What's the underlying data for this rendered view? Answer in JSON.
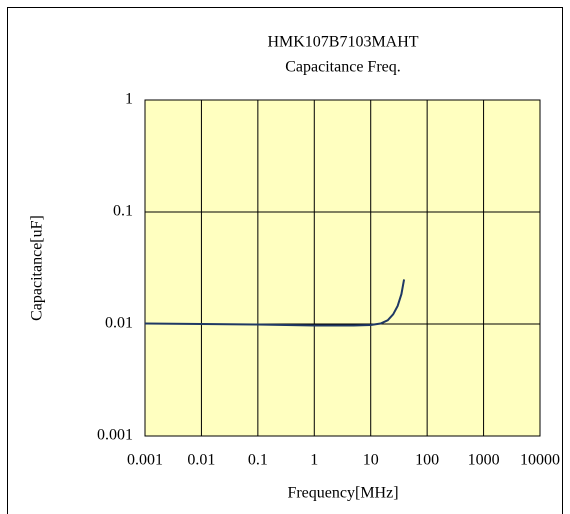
{
  "chart_data": {
    "type": "line",
    "title": "HMK107B7103MAHT",
    "subtitle": "Capacitance Freq.",
    "x_label": "Frequency[MHz]",
    "y_label": "Capacitance[uF]",
    "x": [
      0.001,
      0.01,
      0.1,
      1,
      5,
      10,
      15,
      20,
      25,
      30,
      35,
      39
    ],
    "series": [
      {
        "name": "Capacitance",
        "color": "#1f3864",
        "values": [
          0.0101,
          0.01,
          0.0099,
          0.0097,
          0.0097,
          0.0098,
          0.0101,
          0.0108,
          0.0122,
          0.0145,
          0.0185,
          0.025
        ]
      }
    ],
    "xlim": [
      0.001,
      10000
    ],
    "xticks": [
      0.001,
      0.01,
      0.1,
      1,
      10,
      100,
      1000,
      10000
    ],
    "ylim": [
      0.001,
      1
    ],
    "yticks": [
      0.001,
      0.01,
      0.1,
      1
    ],
    "xscale": "log",
    "yscale": "log",
    "grid": true,
    "plot_background": "#ffffc0"
  }
}
